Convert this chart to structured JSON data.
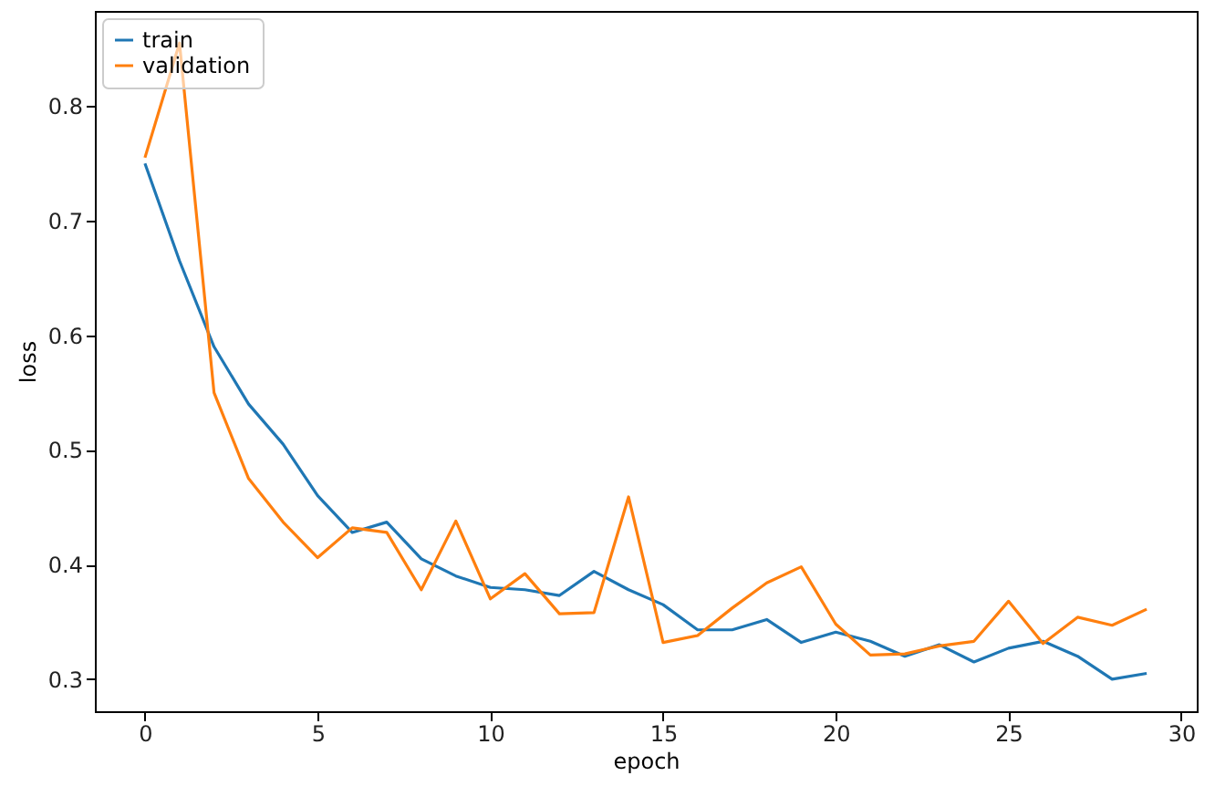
{
  "chart_data": {
    "type": "line",
    "xlabel": "epoch",
    "ylabel": "loss",
    "x": [
      0,
      1,
      2,
      3,
      4,
      5,
      6,
      7,
      8,
      9,
      10,
      11,
      12,
      13,
      14,
      15,
      16,
      17,
      18,
      19,
      20,
      21,
      22,
      23,
      24,
      25,
      26,
      27,
      28,
      29
    ],
    "series": [
      {
        "name": "train",
        "color": "#1f77b4",
        "values": [
          0.75,
          0.665,
          0.59,
          0.54,
          0.505,
          0.46,
          0.428,
          0.437,
          0.405,
          0.39,
          0.38,
          0.378,
          0.373,
          0.394,
          0.378,
          0.365,
          0.343,
          0.343,
          0.352,
          0.332,
          0.341,
          0.333,
          0.32,
          0.33,
          0.315,
          0.327,
          0.333,
          0.32,
          0.3,
          0.305
        ]
      },
      {
        "name": "validation",
        "color": "#ff7f0e",
        "values": [
          0.755,
          0.855,
          0.55,
          0.475,
          0.437,
          0.406,
          0.432,
          0.428,
          0.378,
          0.438,
          0.37,
          0.392,
          0.357,
          0.358,
          0.459,
          0.332,
          0.338,
          0.362,
          0.384,
          0.398,
          0.348,
          0.321,
          0.322,
          0.329,
          0.333,
          0.368,
          0.331,
          0.354,
          0.347,
          0.361
        ]
      }
    ],
    "xlim": [
      -1.45,
      30.45
    ],
    "xticks": [
      0,
      5,
      10,
      15,
      20,
      25,
      30
    ],
    "ylim": [
      0.272,
      0.883
    ],
    "yticks": [
      0.3,
      0.4,
      0.5,
      0.6,
      0.7,
      0.8
    ],
    "grid": false,
    "legend": "top left"
  }
}
